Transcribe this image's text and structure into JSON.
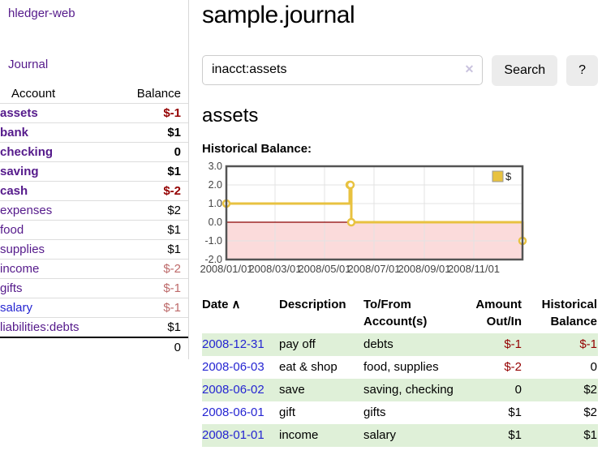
{
  "colors": {
    "link_purple": "#551a8b",
    "link_blue": "#2525d2",
    "neg_strong": "#940000",
    "neg_soft": "#bd6a6a",
    "row_green": "#dff0d8",
    "btn_bg": "#ececec",
    "clear_icon": "#c9c2de",
    "chart_gold": "#e8c240",
    "chart_neg_bg": "#fbdbdb",
    "chart_zero_line": "#8b0000",
    "chart_grid": "#e3e3e3",
    "chart_border": "#545454",
    "divider": "#d8d8d8"
  },
  "sidebar": {
    "brand": "hledger-web",
    "journal_label": "Journal",
    "accounts_table": {
      "headers": {
        "account": "Account",
        "balance": "Balance"
      },
      "rows": [
        {
          "account": "assets",
          "balance": "$-1",
          "depth": 1,
          "bold": true
        },
        {
          "account": "bank",
          "balance": "$1",
          "depth": 2,
          "bold": true
        },
        {
          "account": "checking",
          "balance": "0",
          "depth": 3,
          "bold": true
        },
        {
          "account": "saving",
          "balance": "$1",
          "depth": 3,
          "bold": true
        },
        {
          "account": "cash",
          "balance": "$-2",
          "depth": 2,
          "bold": true
        },
        {
          "account": "expenses",
          "balance": "$2",
          "depth": 1,
          "bold": false
        },
        {
          "account": "food",
          "balance": "$1",
          "depth": 2,
          "bold": false
        },
        {
          "account": "supplies",
          "balance": "$1",
          "depth": 2,
          "bold": false
        },
        {
          "account": "income",
          "balance": "$-2",
          "depth": 1,
          "bold": false
        },
        {
          "account": "gifts",
          "balance": "$-1",
          "depth": 2,
          "bold": false
        },
        {
          "account": "salary",
          "balance": "$-1",
          "depth": 2,
          "bold": false,
          "link_color": "blue"
        },
        {
          "account": "liabilities:debts",
          "balance": "$1",
          "depth": 1,
          "bold": false
        }
      ],
      "total": "0"
    }
  },
  "main": {
    "title": "sample.journal",
    "search": {
      "value": "inacct:assets",
      "clear_icon": "✕",
      "button_label": "Search",
      "help_label": "?"
    },
    "account_heading": "assets",
    "chart_label": "Historical Balance:"
  },
  "chart_data": {
    "type": "line",
    "step": true,
    "title": "Historical Balance:",
    "legend": {
      "label": "$",
      "position": "top-right"
    },
    "series": [
      {
        "name": "$",
        "points": [
          {
            "date": "2008-01-01",
            "value": 1
          },
          {
            "date": "2008-06-01",
            "value": 2
          },
          {
            "date": "2008-06-02",
            "value": 2
          },
          {
            "date": "2008-06-03",
            "value": 0
          },
          {
            "date": "2008-12-31",
            "value": -1
          }
        ]
      }
    ],
    "xlim": [
      "2008-01-01",
      "2008-12-31"
    ],
    "ylim": [
      -2,
      3
    ],
    "x_ticks": [
      {
        "date": "2008-01-01",
        "label": "2008/01/01"
      },
      {
        "date": "2008-03-01",
        "label": "2008/03/01"
      },
      {
        "date": "2008-05-01",
        "label": "2008/05/01"
      },
      {
        "date": "2008-07-01",
        "label": "2008/07/01"
      },
      {
        "date": "2008-09-01",
        "label": "2008/09/01"
      },
      {
        "date": "2008-11-01",
        "label": "2008/11/01"
      }
    ],
    "y_ticks": [
      "3.0",
      "2.0",
      "1.0",
      "0.0",
      "-1.0",
      "-2.0"
    ],
    "grid": true,
    "negative_region": true
  },
  "transactions": {
    "headers": [
      {
        "label": "Date",
        "sort_icon": "∧",
        "align": "left"
      },
      {
        "label": "Description",
        "align": "left"
      },
      {
        "label": "To/From Account(s)",
        "align": "left"
      },
      {
        "label": "Amount Out/In",
        "align": "right"
      },
      {
        "label": "Historical Balance",
        "align": "right"
      }
    ],
    "rows": [
      {
        "date": "2008-12-31",
        "description": "pay off",
        "accounts": "debts",
        "amount": "$-1",
        "balance": "$-1"
      },
      {
        "date": "2008-06-03",
        "description": "eat & shop",
        "accounts": "food, supplies",
        "amount": "$-2",
        "balance": "0"
      },
      {
        "date": "2008-06-02",
        "description": "save",
        "accounts": "saving, checking",
        "amount": "0",
        "balance": "$2"
      },
      {
        "date": "2008-06-01",
        "description": "gift",
        "accounts": "gifts",
        "amount": "$1",
        "balance": "$2"
      },
      {
        "date": "2008-01-01",
        "description": "income",
        "accounts": "salary",
        "amount": "$1",
        "balance": "$1"
      }
    ]
  }
}
